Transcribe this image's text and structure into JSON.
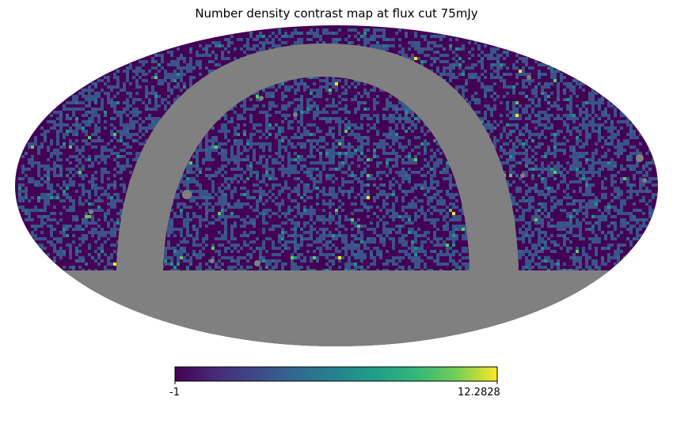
{
  "chart_data": {
    "type": "heatmap",
    "projection": "mollweide",
    "title": "Number density contrast map at flux cut 75mJy",
    "colormap": "viridis",
    "masked_color": "#808080",
    "colorbar": {
      "orientation": "horizontal",
      "vmin": -1,
      "vmax": 12.2828,
      "tick_labels": [
        "-1",
        "12.2828"
      ]
    },
    "mask": {
      "below_latitude_deg": -13,
      "galactic_plane_band": true
    },
    "value_distribution": {
      "dominant_value": -1,
      "typical_range": [
        -1,
        2
      ],
      "max": 12.2828
    }
  }
}
